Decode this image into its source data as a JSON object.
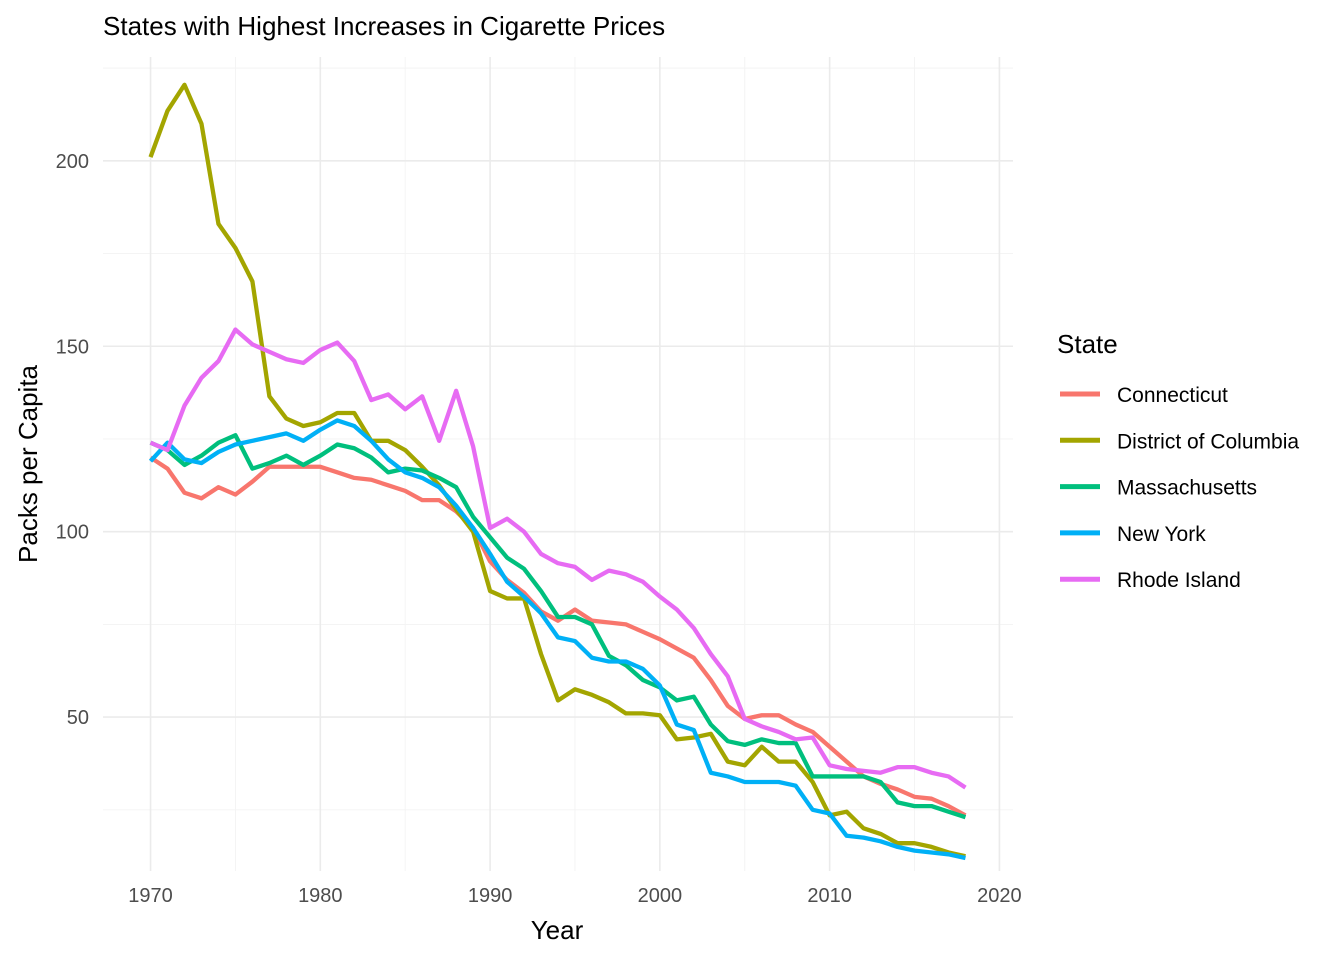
{
  "chart_data": {
    "type": "line",
    "title": "States with Highest Increases in Cigarette Prices",
    "xlabel": "Year",
    "ylabel": "Packs per Capita",
    "xlim": [
      1967.2,
      2020.8
    ],
    "ylim": [
      8.5,
      228
    ],
    "xticks": [
      1970,
      1980,
      1990,
      2000,
      2010,
      2020
    ],
    "yticks": [
      50,
      100,
      150,
      200
    ],
    "grid": true,
    "legend": {
      "title": "State",
      "position": "right"
    },
    "x": [
      1970,
      1971,
      1972,
      1973,
      1974,
      1975,
      1976,
      1977,
      1978,
      1979,
      1980,
      1981,
      1982,
      1983,
      1984,
      1985,
      1986,
      1987,
      1988,
      1989,
      1990,
      1991,
      1992,
      1993,
      1994,
      1995,
      1996,
      1997,
      1998,
      1999,
      2000,
      2001,
      2002,
      2003,
      2004,
      2005,
      2006,
      2007,
      2008,
      2009,
      2010,
      2011,
      2012,
      2013,
      2014,
      2015,
      2016,
      2017,
      2018
    ],
    "series": [
      {
        "name": "Connecticut",
        "color": "#F8766D",
        "values": [
          120,
          117,
          110.5,
          109,
          112,
          110,
          113.5,
          117.5,
          117.5,
          117.5,
          117.5,
          116,
          114.5,
          114,
          112.5,
          111,
          108.5,
          108.5,
          105.5,
          101,
          92,
          87,
          83.5,
          78.5,
          76,
          79,
          76,
          75.5,
          75,
          73,
          71,
          68.5,
          66,
          60,
          53,
          49.5,
          50.5,
          50.5,
          48,
          46,
          42,
          38,
          34,
          32,
          30.5,
          28.5,
          28,
          26,
          23.5
        ]
      },
      {
        "name": "District of Columbia",
        "color": "#A3A500",
        "values": [
          201,
          213.5,
          220.5,
          210,
          183,
          176.5,
          167.5,
          136.5,
          130.5,
          128.5,
          129.5,
          132,
          132,
          124.5,
          124.5,
          122,
          117.5,
          112.5,
          106,
          100,
          84,
          82,
          82,
          67,
          54.5,
          57.5,
          56,
          54,
          51,
          51,
          50.5,
          44,
          44.5,
          45.5,
          38,
          37,
          42,
          38,
          38,
          32.5,
          23.5,
          24.5,
          20,
          18.5,
          16,
          16,
          15,
          13.5,
          12.5
        ]
      },
      {
        "name": "Massachusetts",
        "color": "#00BF7D",
        "values": [
          124,
          122,
          118,
          120.5,
          124,
          126,
          117,
          118.5,
          120.5,
          118,
          120.5,
          123.5,
          122.5,
          120,
          116,
          117,
          116.5,
          114.5,
          112,
          104,
          98.5,
          93,
          90,
          84,
          77,
          77,
          75,
          66.5,
          64,
          60,
          58,
          54.5,
          55.5,
          48,
          43.5,
          42.5,
          44,
          43,
          43,
          34,
          34,
          34,
          34,
          32.5,
          27,
          26,
          26,
          24.5,
          23
        ]
      },
      {
        "name": "New York",
        "color": "#00B0F6",
        "values": [
          119,
          124,
          119.5,
          118.5,
          121.5,
          123.5,
          124.5,
          125.5,
          126.5,
          124.5,
          127.5,
          130,
          128.5,
          124.5,
          119.5,
          116,
          114.5,
          112,
          107,
          101,
          94,
          86.5,
          82.5,
          78,
          71.5,
          70.5,
          66,
          65,
          65,
          63,
          58.5,
          48,
          46.5,
          35,
          34,
          32.5,
          32.5,
          32.5,
          31.5,
          25,
          24,
          18,
          17.5,
          16.5,
          15,
          14,
          13.5,
          13,
          12
        ]
      },
      {
        "name": "Rhode Island",
        "color": "#E76BF3",
        "values": [
          124,
          122,
          134,
          141.5,
          146,
          154.5,
          150.5,
          148.5,
          146.5,
          145.5,
          149,
          151,
          146,
          135.5,
          137,
          133,
          136.5,
          124.5,
          138,
          123,
          101,
          103.5,
          100,
          94,
          91.5,
          90.5,
          87,
          89.5,
          88.5,
          86.5,
          82.5,
          79,
          74,
          67,
          61,
          49.5,
          47.5,
          46,
          44,
          44.5,
          37,
          36,
          35.5,
          35,
          36.5,
          36.5,
          35,
          34,
          31
        ]
      }
    ]
  }
}
